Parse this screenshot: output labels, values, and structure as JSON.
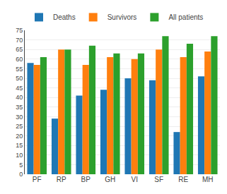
{
  "chart_data": {
    "type": "bar",
    "categories": [
      "PF",
      "RP",
      "BP",
      "GH",
      "VI",
      "SF",
      "RE",
      "MH"
    ],
    "series": [
      {
        "name": "Deaths",
        "values": [
          58,
          29,
          41,
          44,
          50,
          49,
          22,
          51
        ]
      },
      {
        "name": "Survivors",
        "values": [
          57,
          65,
          57,
          61,
          60,
          65,
          61,
          64
        ]
      },
      {
        "name": "All patients",
        "values": [
          61,
          65,
          67,
          63,
          63,
          72,
          68,
          72
        ]
      }
    ],
    "ylim": [
      0,
      75
    ],
    "yticks": [
      0,
      5,
      10,
      15,
      20,
      25,
      30,
      35,
      40,
      45,
      50,
      55,
      60,
      65,
      70,
      75
    ],
    "grid": true,
    "legend": "upper left"
  }
}
